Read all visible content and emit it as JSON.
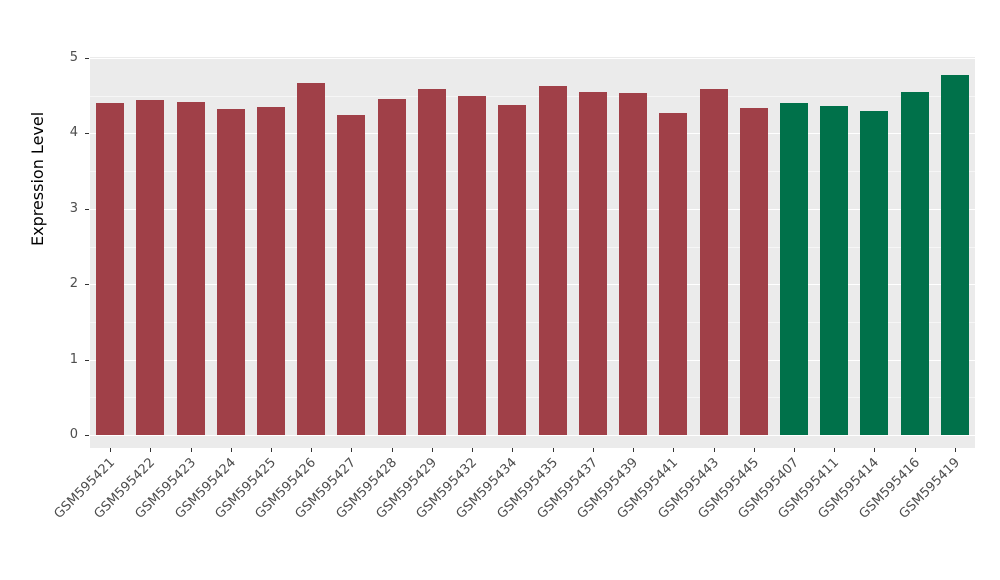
{
  "chart_data": {
    "type": "bar",
    "title": "",
    "xlabel": "",
    "ylabel": "Expression Level",
    "ylim": [
      0,
      5
    ],
    "yticks": [
      0,
      1,
      2,
      3,
      4,
      5
    ],
    "grid": true,
    "legend_position": "none",
    "panel_bg": "#EBEBEB",
    "grid_major_color": "#FFFFFF",
    "grid_minor_color": "#FFFFFF",
    "categories": [
      "GSM595421",
      "GSM595422",
      "GSM595423",
      "GSM595424",
      "GSM595425",
      "GSM595426",
      "GSM595427",
      "GSM595428",
      "GSM595429",
      "GSM595432",
      "GSM595434",
      "GSM595435",
      "GSM595437",
      "GSM595439",
      "GSM595441",
      "GSM595443",
      "GSM595445",
      "GSM595407",
      "GSM595411",
      "GSM595414",
      "GSM595416",
      "GSM595419"
    ],
    "values": [
      4.4,
      4.44,
      4.42,
      4.32,
      4.35,
      4.67,
      4.25,
      4.45,
      4.59,
      4.49,
      4.38,
      4.63,
      4.55,
      4.53,
      4.27,
      4.59,
      4.34,
      4.4,
      4.37,
      4.3,
      4.55,
      4.77
    ],
    "bar_colors": [
      "#A04048",
      "#A04048",
      "#A04048",
      "#A04048",
      "#A04048",
      "#A04048",
      "#A04048",
      "#A04048",
      "#A04048",
      "#A04048",
      "#A04048",
      "#A04048",
      "#A04048",
      "#A04048",
      "#A04048",
      "#A04048",
      "#A04048",
      "#00714A",
      "#00714A",
      "#00714A",
      "#00714A",
      "#00714A"
    ],
    "group_colors": {
      "group_red": "#A04048",
      "group_green": "#00714A"
    }
  }
}
